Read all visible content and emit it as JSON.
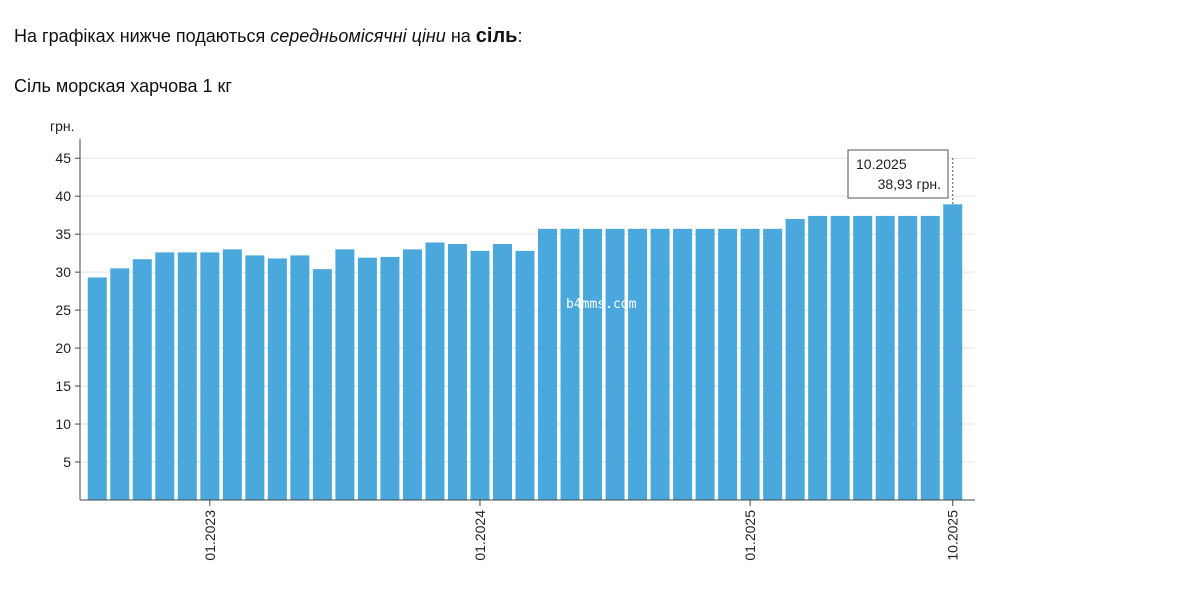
{
  "heading": {
    "parts": [
      "На графіках нижче подаються ",
      "середньомісячні ціни",
      " на ",
      "сіль",
      ":"
    ]
  },
  "watermark": "b4mms.com",
  "chart_data": {
    "type": "bar",
    "title": "Сіль морская харчова 1 кг",
    "y_label": "грн.",
    "categories": [
      null,
      null,
      null,
      null,
      null,
      "01.2023",
      null,
      null,
      null,
      null,
      null,
      null,
      null,
      null,
      null,
      null,
      null,
      "01.2024",
      null,
      null,
      null,
      null,
      null,
      null,
      null,
      null,
      null,
      null,
      null,
      "01.2025",
      null,
      null,
      null,
      null,
      null,
      null,
      null,
      null,
      "10.2025"
    ],
    "values": [
      29.3,
      30.5,
      31.7,
      32.6,
      32.6,
      32.6,
      33.0,
      32.2,
      31.8,
      32.2,
      30.4,
      33.0,
      31.9,
      32.0,
      33.0,
      33.9,
      33.7,
      32.8,
      33.7,
      32.8,
      35.7,
      35.7,
      35.7,
      35.7,
      35.7,
      35.7,
      35.7,
      35.7,
      35.7,
      35.7,
      35.7,
      37.0,
      37.4,
      37.4,
      37.4,
      37.4,
      37.4,
      37.4,
      38.93
    ],
    "color": "#4aa8dc",
    "ylim": [
      0,
      47
    ],
    "yticks": [
      5,
      10,
      15,
      20,
      25,
      30,
      35,
      40,
      45
    ],
    "grid": true,
    "tooltip": {
      "index": 38,
      "value_label": "38,93 грн."
    }
  }
}
